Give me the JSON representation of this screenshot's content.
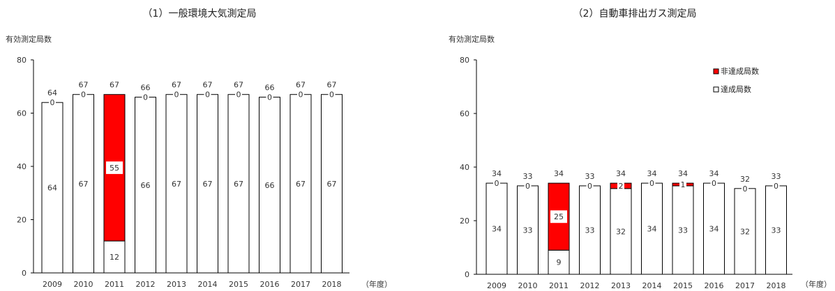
{
  "colors": {
    "achieved": "#ffffff",
    "not_achieved": "#ff0000",
    "outline": "#000000",
    "text": "#333333"
  },
  "legend": {
    "not_achieved": "非達成局数",
    "achieved": "達成局数",
    "placement": "top-right of chart 2"
  },
  "xunit": "（年度）",
  "chart_data": [
    {
      "type": "bar",
      "stacked": true,
      "title": "（1）一般環境大気測定局",
      "ylabel": "有効測定局数",
      "xlabel": "",
      "ylim": [
        0,
        80
      ],
      "yticks": [
        0,
        20,
        40,
        60,
        80
      ],
      "categories": [
        "2009",
        "2010",
        "2011",
        "2012",
        "2013",
        "2014",
        "2015",
        "2016",
        "2017",
        "2018"
      ],
      "series": [
        {
          "name": "達成局数",
          "color": "#ffffff",
          "values": [
            64,
            67,
            12,
            66,
            67,
            67,
            67,
            66,
            67,
            67
          ]
        },
        {
          "name": "非達成局数",
          "color": "#ff0000",
          "values": [
            0,
            0,
            55,
            0,
            0,
            0,
            0,
            0,
            0,
            0
          ]
        }
      ],
      "totals": [
        64,
        67,
        67,
        66,
        67,
        67,
        67,
        66,
        67,
        67
      ]
    },
    {
      "type": "bar",
      "stacked": true,
      "title": "（2）自動車排出ガス測定局",
      "ylabel": "有効測定局数",
      "xlabel": "",
      "ylim": [
        0,
        80
      ],
      "yticks": [
        0,
        20,
        40,
        60,
        80
      ],
      "categories": [
        "2009",
        "2010",
        "2011",
        "2012",
        "2013",
        "2014",
        "2015",
        "2016",
        "2017",
        "2018"
      ],
      "series": [
        {
          "name": "達成局数",
          "color": "#ffffff",
          "values": [
            34,
            33,
            9,
            33,
            32,
            34,
            33,
            34,
            32,
            33
          ]
        },
        {
          "name": "非達成局数",
          "color": "#ff0000",
          "values": [
            0,
            0,
            25,
            0,
            2,
            0,
            1,
            0,
            0,
            0
          ]
        }
      ],
      "totals": [
        34,
        33,
        34,
        33,
        34,
        34,
        34,
        34,
        32,
        33
      ]
    }
  ]
}
